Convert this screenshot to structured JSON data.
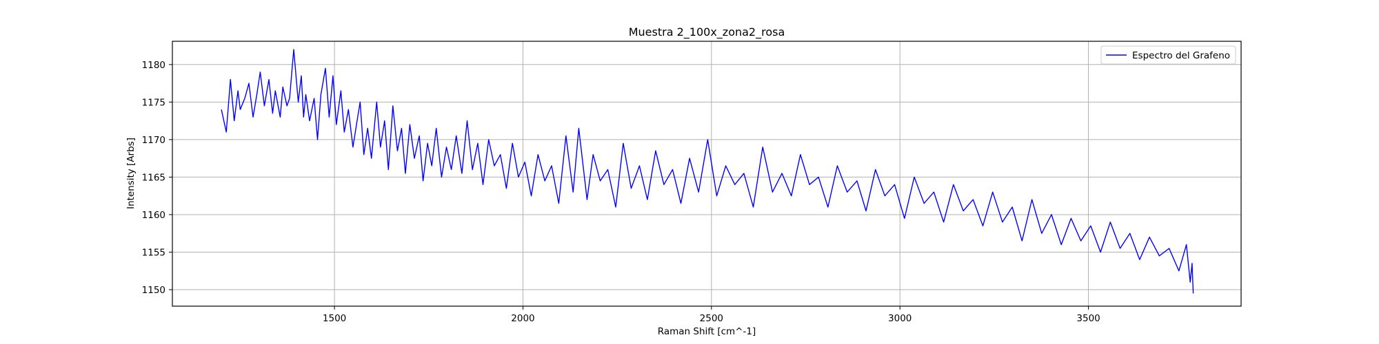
{
  "chart_data": {
    "type": "line",
    "title": "Muestra 2_100x_zona2_rosa",
    "xlabel": "Raman Shift [cm^-1]",
    "ylabel": "Intensity [Arbs]",
    "xlim": [
      1070,
      3905
    ],
    "ylim": [
      1147.8,
      1183.1
    ],
    "x_ticks": [
      1500,
      2000,
      2500,
      3000,
      3500
    ],
    "y_ticks": [
      1150,
      1155,
      1160,
      1165,
      1170,
      1175,
      1180
    ],
    "grid": true,
    "legend_position": "top-right",
    "series": [
      {
        "name": "Espectro del Grafeno",
        "color": "#0000ff",
        "x": [
          1200,
          1213,
          1224,
          1234,
          1244,
          1250,
          1262,
          1273,
          1284,
          1294,
          1303,
          1314,
          1326,
          1336,
          1343,
          1356,
          1363,
          1374,
          1381,
          1392,
          1404,
          1412,
          1418,
          1424,
          1434,
          1446,
          1455,
          1464,
          1476,
          1486,
          1496,
          1505,
          1517,
          1526,
          1537,
          1549,
          1560,
          1568,
          1578,
          1588,
          1598,
          1612,
          1622,
          1633,
          1643,
          1655,
          1667,
          1678,
          1688,
          1700,
          1712,
          1725,
          1735,
          1747,
          1758,
          1770,
          1784,
          1797,
          1810,
          1823,
          1838,
          1852,
          1866,
          1880,
          1894,
          1909,
          1924,
          1940,
          1956,
          1972,
          1988,
          2005,
          2022,
          2040,
          2058,
          2076,
          2095,
          2114,
          2133,
          2148,
          2170,
          2186,
          2205,
          2225,
          2246,
          2266,
          2287,
          2309,
          2330,
          2352,
          2374,
          2397,
          2419,
          2442,
          2466,
          2490,
          2514,
          2538,
          2562,
          2586,
          2611,
          2636,
          2662,
          2687,
          2712,
          2736,
          2760,
          2784,
          2809,
          2834,
          2860,
          2886,
          2910,
          2935,
          2960,
          2986,
          3012,
          3038,
          3064,
          3090,
          3116,
          3142,
          3168,
          3194,
          3220,
          3246,
          3272,
          3298,
          3324,
          3350,
          3376,
          3402,
          3428,
          3454,
          3480,
          3506,
          3532,
          3558,
          3584,
          3610,
          3636,
          3662,
          3688,
          3714,
          3740,
          3760,
          3770,
          3775,
          3778
        ],
        "values": [
          1174.0,
          1171.0,
          1178.0,
          1172.5,
          1176.5,
          1174.0,
          1175.5,
          1177.5,
          1173.0,
          1176.0,
          1179.0,
          1174.5,
          1178.0,
          1173.5,
          1176.5,
          1173.0,
          1177.0,
          1174.5,
          1175.5,
          1182.0,
          1175.0,
          1178.5,
          1173.0,
          1176.0,
          1172.5,
          1175.5,
          1170.0,
          1176.0,
          1179.5,
          1173.0,
          1178.5,
          1172.0,
          1176.5,
          1171.0,
          1174.0,
          1169.0,
          1172.5,
          1175.0,
          1168.0,
          1171.5,
          1167.5,
          1175.0,
          1169.0,
          1172.5,
          1166.0,
          1174.5,
          1168.5,
          1171.5,
          1165.5,
          1172.0,
          1167.5,
          1170.5,
          1164.5,
          1169.5,
          1166.5,
          1171.5,
          1165.0,
          1169.0,
          1166.0,
          1170.5,
          1165.5,
          1172.5,
          1166.0,
          1169.5,
          1164.0,
          1170.0,
          1166.5,
          1168.0,
          1163.5,
          1169.5,
          1165.0,
          1167.0,
          1162.5,
          1168.0,
          1164.5,
          1166.5,
          1161.5,
          1170.5,
          1163.0,
          1171.5,
          1162.0,
          1168.0,
          1164.5,
          1166.0,
          1161.0,
          1169.5,
          1163.5,
          1166.5,
          1162.0,
          1168.5,
          1164.0,
          1166.0,
          1161.5,
          1167.5,
          1163.0,
          1170.0,
          1162.5,
          1166.5,
          1164.0,
          1165.5,
          1161.0,
          1169.0,
          1163.0,
          1165.5,
          1162.5,
          1168.0,
          1164.0,
          1165.0,
          1161.0,
          1166.5,
          1163.0,
          1164.5,
          1160.5,
          1166.0,
          1162.5,
          1164.0,
          1159.5,
          1165.0,
          1161.5,
          1163.0,
          1159.0,
          1164.0,
          1160.5,
          1162.0,
          1158.5,
          1163.0,
          1159.0,
          1161.0,
          1156.5,
          1162.0,
          1157.5,
          1160.0,
          1156.0,
          1159.5,
          1156.5,
          1158.5,
          1155.0,
          1159.0,
          1155.5,
          1157.5,
          1154.0,
          1157.0,
          1154.5,
          1155.5,
          1152.5,
          1156.0,
          1151.0,
          1153.5,
          1149.5
        ]
      }
    ]
  }
}
